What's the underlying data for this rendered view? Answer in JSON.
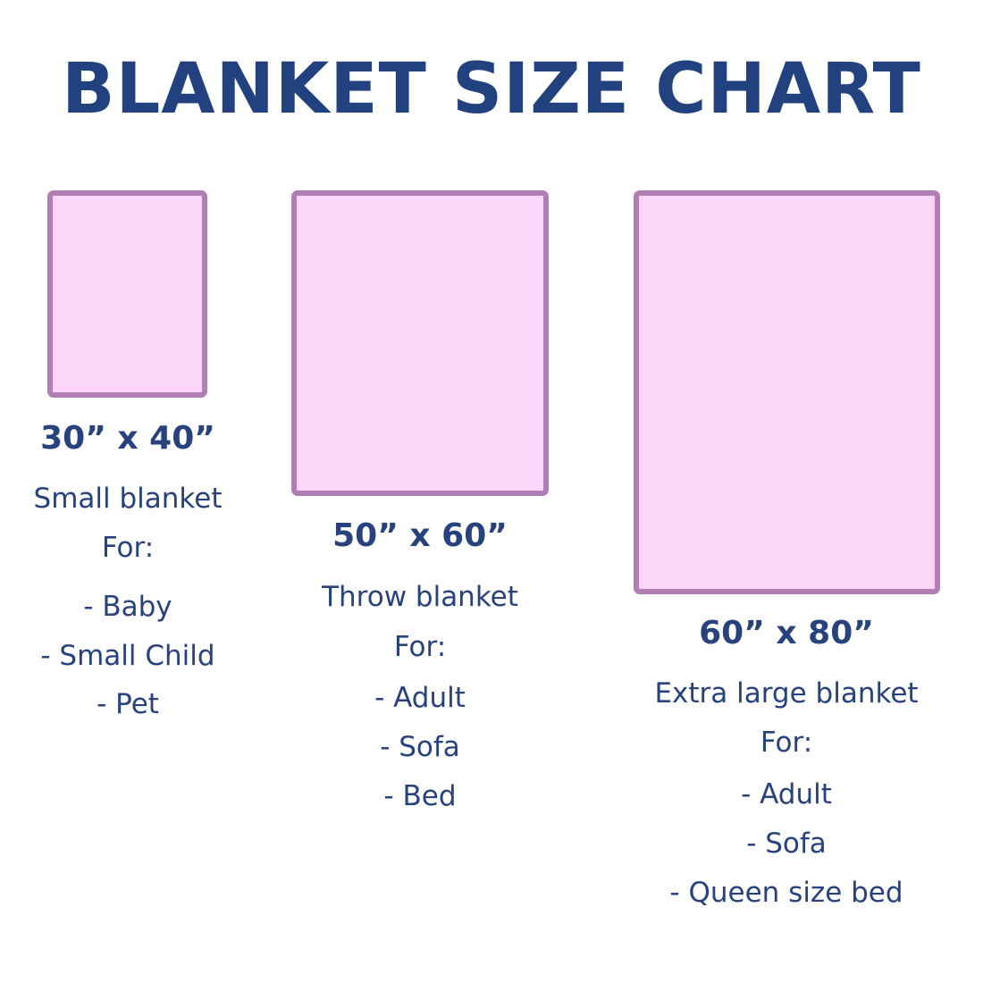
{
  "title": "BLANKET SIZE CHART",
  "colors": {
    "text": "#27427c",
    "box_fill": "#fbd6f8",
    "box_border": "#b07db5"
  },
  "blankets": [
    {
      "size": "30” x 40”",
      "name": "Small blanket",
      "for_label": "For:",
      "uses": [
        "- Baby",
        "- Small Child",
        "- Pet"
      ]
    },
    {
      "size": "50” x 60”",
      "name": "Throw blanket",
      "for_label": "For:",
      "uses": [
        "- Adult",
        "- Sofa",
        "- Bed"
      ]
    },
    {
      "size": "60” x 80”",
      "name": "Extra large blanket",
      "for_label": "For:",
      "uses": [
        "- Adult",
        "- Sofa",
        "- Queen size bed"
      ]
    }
  ]
}
